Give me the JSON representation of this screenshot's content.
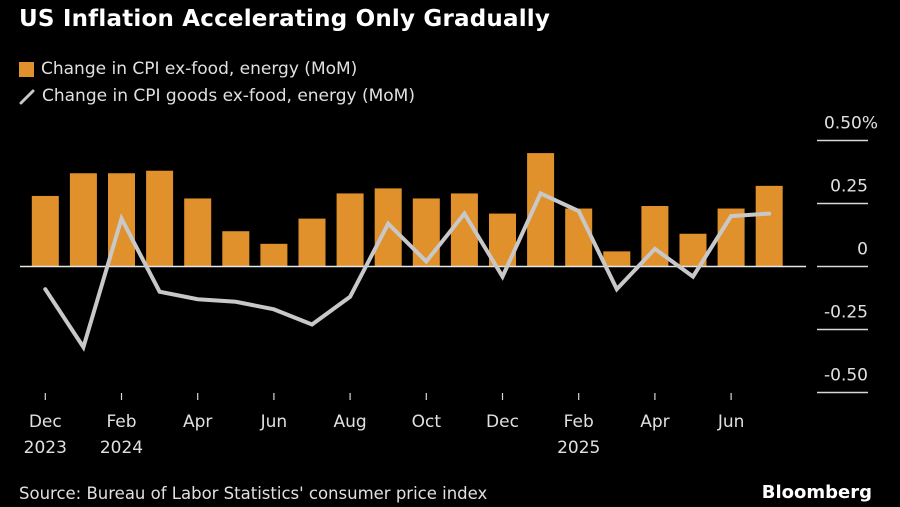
{
  "chart_data": {
    "type": "bar+line",
    "title": "US Inflation Accelerating Only Gradually",
    "legend": [
      {
        "name": "Change in CPI ex-food, energy (MoM)",
        "marker": "bar",
        "color": "#e0912b"
      },
      {
        "name": "Change in CPI goods ex-food, energy (MoM)",
        "marker": "line",
        "color": "#c8c8c8"
      }
    ],
    "legend_position": "top-left",
    "x": [
      "Dec 2023",
      "Jan 2024",
      "Feb 2024",
      "Mar 2024",
      "Apr 2024",
      "May 2024",
      "Jun 2024",
      "Jul 2024",
      "Aug 2024",
      "Sep 2024",
      "Oct 2024",
      "Nov 2024",
      "Dec 2024",
      "Jan 2025",
      "Feb 2025",
      "Mar 2025",
      "Apr 2025",
      "May 2025",
      "Jun 2025",
      "Jul 2025"
    ],
    "series": [
      {
        "name": "Change in CPI ex-food, energy (MoM)",
        "type": "bar",
        "color": "#e0912b",
        "values": [
          0.28,
          0.37,
          0.37,
          0.38,
          0.27,
          0.14,
          0.09,
          0.19,
          0.29,
          0.31,
          0.27,
          0.29,
          0.21,
          0.45,
          0.23,
          0.06,
          0.24,
          0.13,
          0.23,
          0.32
        ]
      },
      {
        "name": "Change in CPI goods ex-food, energy (MoM)",
        "type": "line",
        "color": "#c8c8c8",
        "values": [
          -0.09,
          -0.32,
          0.19,
          -0.1,
          -0.13,
          -0.14,
          -0.17,
          -0.23,
          -0.12,
          0.17,
          0.02,
          0.21,
          -0.04,
          0.29,
          0.22,
          -0.09,
          0.07,
          -0.04,
          0.2,
          0.21
        ]
      }
    ],
    "x_ticks": [
      {
        "index": 0,
        "label": "Dec",
        "sublabel": "2023"
      },
      {
        "index": 2,
        "label": "Feb",
        "sublabel": "2024"
      },
      {
        "index": 4,
        "label": "Apr",
        "sublabel": ""
      },
      {
        "index": 6,
        "label": "Jun",
        "sublabel": ""
      },
      {
        "index": 8,
        "label": "Aug",
        "sublabel": ""
      },
      {
        "index": 10,
        "label": "Oct",
        "sublabel": ""
      },
      {
        "index": 12,
        "label": "Dec",
        "sublabel": ""
      },
      {
        "index": 14,
        "label": "Feb",
        "sublabel": "2025"
      },
      {
        "index": 16,
        "label": "Apr",
        "sublabel": ""
      },
      {
        "index": 18,
        "label": "Jun",
        "sublabel": ""
      }
    ],
    "y_ticks": [
      {
        "value": 0.5,
        "label": "0.50%"
      },
      {
        "value": 0.25,
        "label": "0.25"
      },
      {
        "value": 0,
        "label": "0"
      },
      {
        "value": -0.25,
        "label": "-0.25"
      },
      {
        "value": -0.5,
        "label": "-0.50"
      }
    ],
    "ylim": [
      -0.5,
      0.5
    ],
    "y_axis_position": "right",
    "xlabel": "",
    "ylabel": "",
    "grid": false
  },
  "footer": {
    "source": "Source: Bureau of Labor Statistics' consumer price index",
    "brand": "Bloomberg"
  }
}
